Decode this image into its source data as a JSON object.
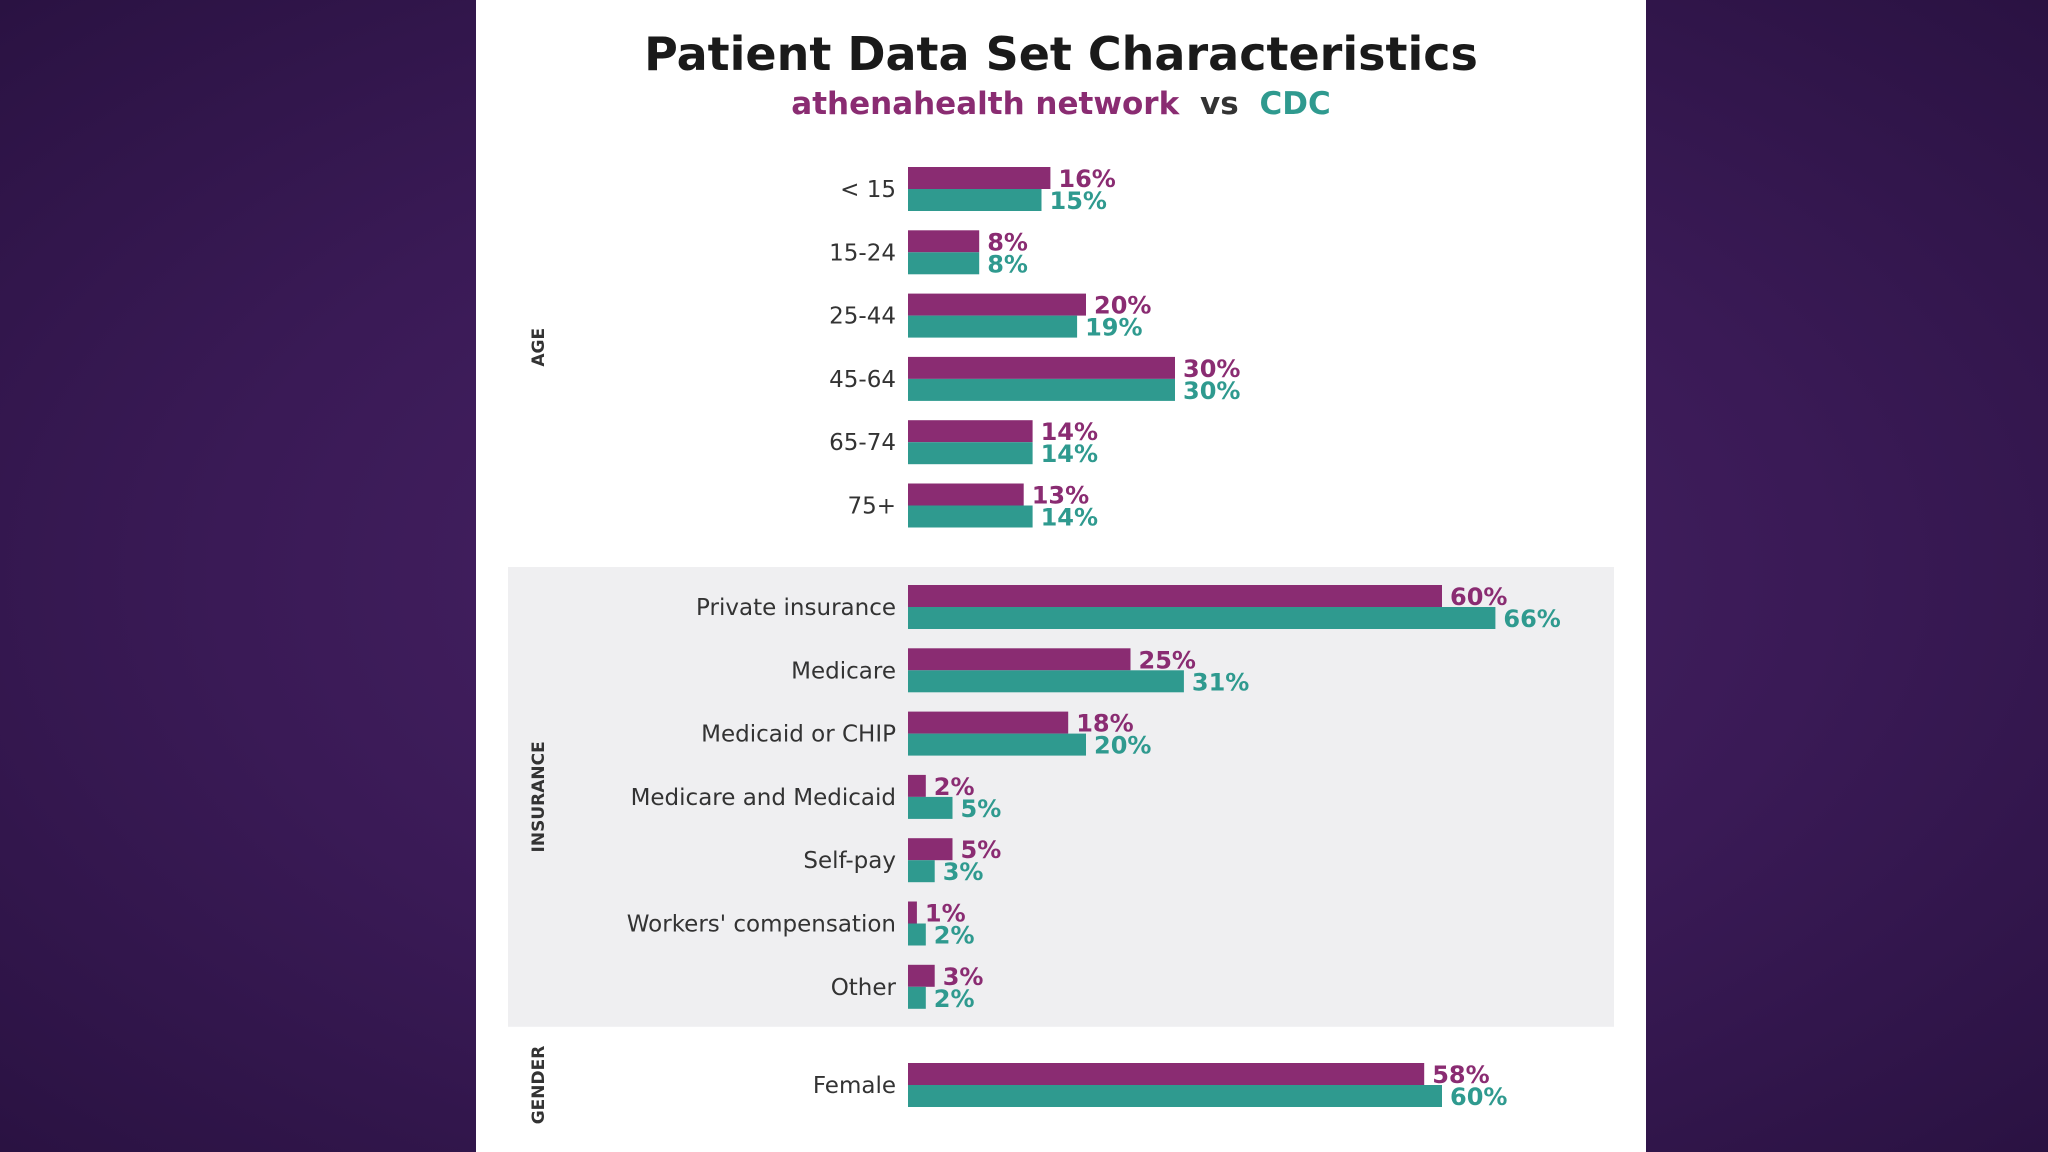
{
  "colors": {
    "athena": "#8a2c72",
    "cdc": "#2f9a8f",
    "label": "#333333",
    "band": "#efeff1"
  },
  "chart_data": {
    "type": "bar",
    "orientation": "horizontal",
    "title": "Patient Data Set Characteristics",
    "subtitle": {
      "series_a": "athenahealth network",
      "joiner": "vs",
      "series_b": "CDC"
    },
    "series": [
      {
        "name": "athenahealth network",
        "color": "#8a2c72"
      },
      {
        "name": "CDC",
        "color": "#2f9a8f"
      }
    ],
    "value_max": 100,
    "groups": [
      {
        "name": "AGE",
        "shaded": false,
        "categories": [
          {
            "label": "< 15",
            "values": [
              16,
              15
            ]
          },
          {
            "label": "15-24",
            "values": [
              8,
              8
            ]
          },
          {
            "label": "25-44",
            "values": [
              20,
              19
            ]
          },
          {
            "label": "45-64",
            "values": [
              30,
              30
            ]
          },
          {
            "label": "65-74",
            "values": [
              14,
              14
            ]
          },
          {
            "label": "75+",
            "values": [
              13,
              14
            ]
          }
        ]
      },
      {
        "name": "INSURANCE",
        "shaded": true,
        "categories": [
          {
            "label": "Private insurance",
            "values": [
              60,
              66
            ]
          },
          {
            "label": "Medicare",
            "values": [
              25,
              31
            ]
          },
          {
            "label": "Medicaid or CHIP",
            "values": [
              18,
              20
            ]
          },
          {
            "label": "Medicare and Medicaid",
            "values": [
              2,
              5
            ]
          },
          {
            "label": "Self-pay",
            "values": [
              5,
              3
            ]
          },
          {
            "label": "Workers' compensation",
            "values": [
              1,
              2
            ]
          },
          {
            "label": "Other",
            "values": [
              3,
              2
            ]
          }
        ]
      },
      {
        "name": "GENDER",
        "shaded": false,
        "categories": [
          {
            "label": "Female",
            "values": [
              58,
              60
            ]
          }
        ]
      }
    ],
    "value_suffix": "%"
  }
}
